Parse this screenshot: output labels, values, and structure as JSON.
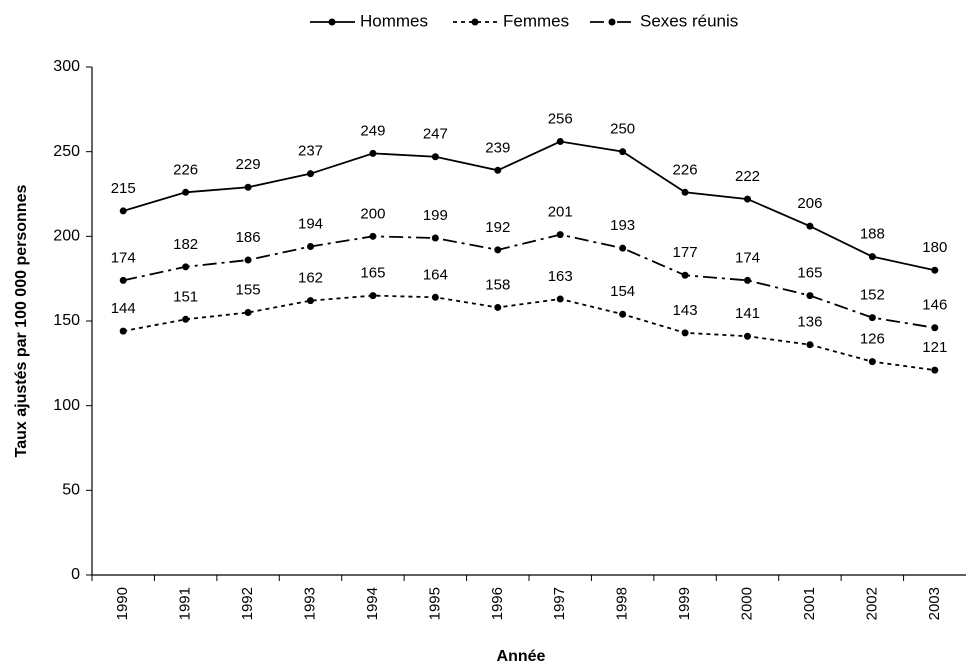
{
  "chart_data": {
    "type": "line",
    "x_label": "Année",
    "y_label": "Taux ajustés par 100 000 personnes",
    "categories": [
      "1990",
      "1991",
      "1992",
      "1993",
      "1994",
      "1995",
      "1996",
      "1997",
      "1998",
      "1999",
      "2000",
      "2001",
      "2002",
      "2003"
    ],
    "series": [
      {
        "name": "Hommes",
        "color": "#000000",
        "line_style": "solid",
        "values": [
          215,
          226,
          229,
          237,
          249,
          247,
          239,
          256,
          250,
          226,
          222,
          206,
          188,
          180
        ]
      },
      {
        "name": "Femmes",
        "color": "#000000",
        "line_style": "dotted",
        "values": [
          144,
          151,
          155,
          162,
          165,
          164,
          158,
          163,
          154,
          143,
          141,
          136,
          126,
          121
        ]
      },
      {
        "name": "Sexes réunis",
        "color": "#000000",
        "line_style": "dashdot",
        "values": [
          174,
          182,
          186,
          194,
          200,
          199,
          192,
          201,
          193,
          177,
          174,
          165,
          152,
          146
        ]
      }
    ],
    "ylim": [
      0,
      300
    ],
    "yticks": [
      0,
      50,
      100,
      150,
      200,
      250,
      300
    ],
    "legend": "top"
  }
}
